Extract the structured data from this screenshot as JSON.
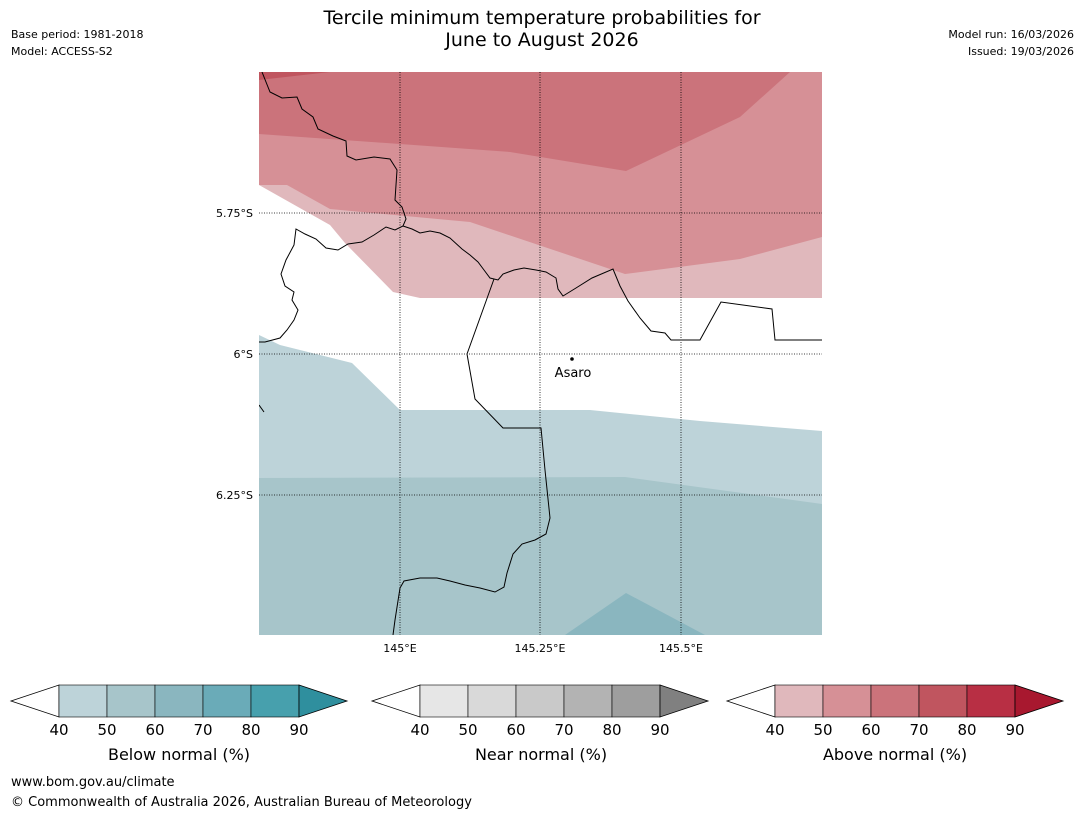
{
  "header": {
    "title_line1": "Tercile minimum temperature probabilities for",
    "title_line2": "June to August 2026",
    "base_period": "Base period: 1981-2018",
    "model": "Model: ACCESS-S2",
    "model_run": "Model run: 16/03/2026",
    "issued": "Issued: 19/03/2026"
  },
  "map": {
    "lat_labels": [
      "5.75°S",
      "6°S",
      "6.25°S"
    ],
    "lon_labels": [
      "145°E",
      "145.25°E",
      "145.5°E"
    ],
    "place": "Asaro"
  },
  "legend": {
    "tick_labels": [
      "40",
      "50",
      "60",
      "70",
      "80",
      "90"
    ],
    "below": {
      "title": "Below normal (%)",
      "colors": [
        "#ffffff",
        "#bdd3d9",
        "#a7c5ca",
        "#8ab6bf",
        "#6aabb8",
        "#47a0ad",
        "#2f8f9e"
      ]
    },
    "near": {
      "title": "Near normal (%)",
      "colors": [
        "#ffffff",
        "#e6e6e6",
        "#d9d9d9",
        "#c9c9c9",
        "#b3b3b3",
        "#9e9e9e",
        "#808080"
      ]
    },
    "above": {
      "title": "Above normal (%)",
      "colors": [
        "#ffffff",
        "#e0b8bc",
        "#d69096",
        "#cb737b",
        "#c0555f",
        "#b82f44",
        "#a8182f"
      ]
    }
  },
  "footer": {
    "url": "www.bom.gov.au/climate",
    "copyright": "© Commonwealth of Australia 2026, Australian Bureau of Meteorology"
  }
}
